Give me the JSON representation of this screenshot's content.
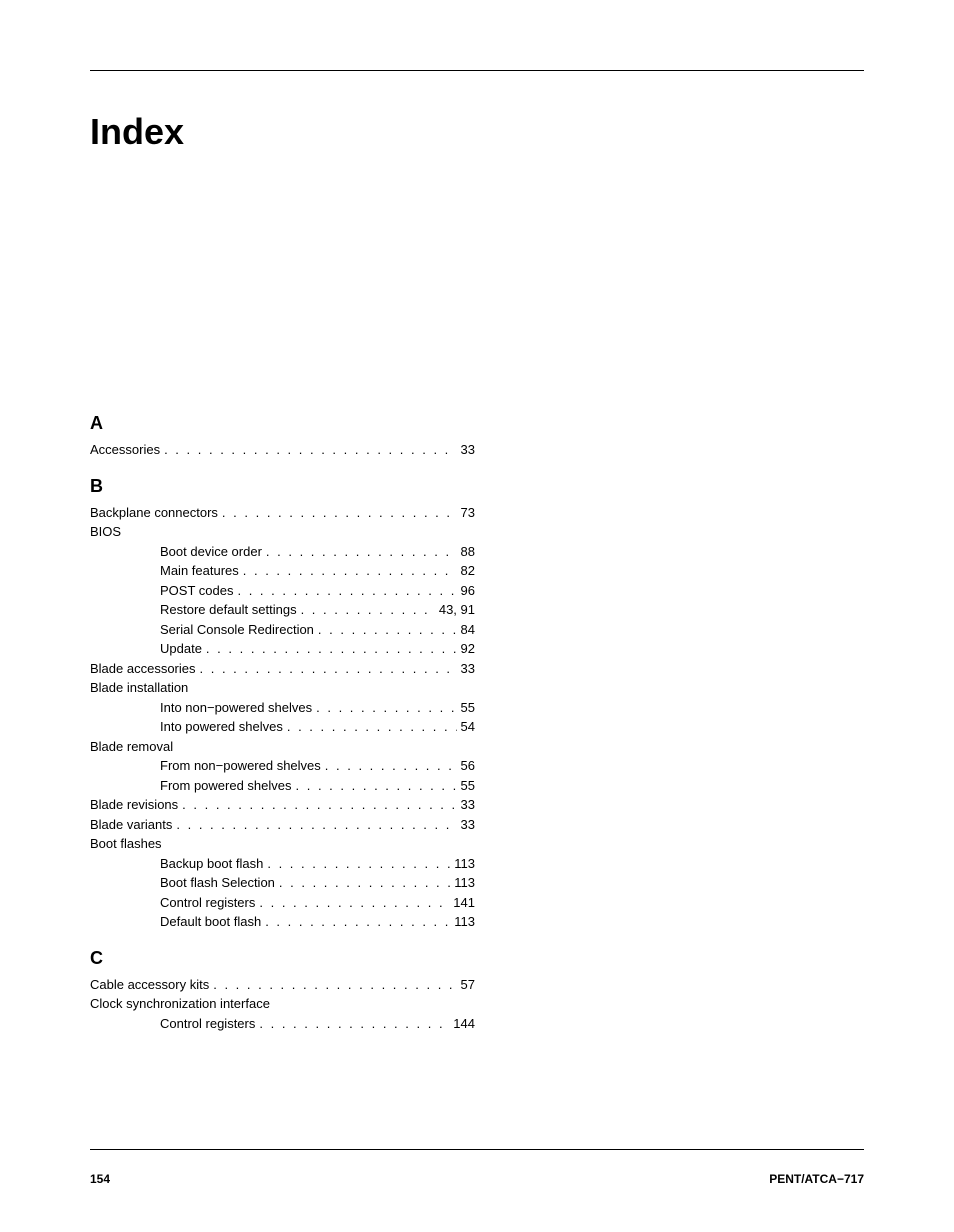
{
  "title": "Index",
  "sections": [
    {
      "letter": "A",
      "entries": [
        {
          "label": "Accessories",
          "page": "33",
          "sub": false,
          "hasPage": true
        }
      ]
    },
    {
      "letter": "B",
      "entries": [
        {
          "label": "Backplane connectors",
          "page": "73",
          "sub": false,
          "hasPage": true
        },
        {
          "label": "BIOS",
          "page": "",
          "sub": false,
          "hasPage": false
        },
        {
          "label": "Boot device order",
          "page": "88",
          "sub": true,
          "hasPage": true
        },
        {
          "label": "Main features",
          "page": "82",
          "sub": true,
          "hasPage": true
        },
        {
          "label": "POST codes",
          "page": "96",
          "sub": true,
          "hasPage": true
        },
        {
          "label": "Restore default settings",
          "page": "43,   91",
          "sub": true,
          "hasPage": true
        },
        {
          "label": "Serial Console Redirection",
          "page": "84",
          "sub": true,
          "hasPage": true
        },
        {
          "label": "Update",
          "page": "92",
          "sub": true,
          "hasPage": true
        },
        {
          "label": "Blade accessories",
          "page": "33",
          "sub": false,
          "hasPage": true
        },
        {
          "label": "Blade installation",
          "page": "",
          "sub": false,
          "hasPage": false
        },
        {
          "label": "Into non−powered shelves",
          "page": "55",
          "sub": true,
          "hasPage": true
        },
        {
          "label": "Into powered shelves",
          "page": "54",
          "sub": true,
          "hasPage": true
        },
        {
          "label": "Blade removal",
          "page": "",
          "sub": false,
          "hasPage": false
        },
        {
          "label": "From non−powered shelves",
          "page": "56",
          "sub": true,
          "hasPage": true
        },
        {
          "label": "From powered shelves",
          "page": "55",
          "sub": true,
          "hasPage": true
        },
        {
          "label": "Blade revisions",
          "page": "33",
          "sub": false,
          "hasPage": true
        },
        {
          "label": "Blade variants",
          "page": "33",
          "sub": false,
          "hasPage": true
        },
        {
          "label": "Boot flashes",
          "page": "",
          "sub": false,
          "hasPage": false
        },
        {
          "label": "Backup boot flash",
          "page": "113",
          "sub": true,
          "hasPage": true
        },
        {
          "label": "Boot flash Selection",
          "page": "113",
          "sub": true,
          "hasPage": true
        },
        {
          "label": "Control registers",
          "page": "141",
          "sub": true,
          "hasPage": true
        },
        {
          "label": "Default boot flash",
          "page": "113",
          "sub": true,
          "hasPage": true
        }
      ]
    },
    {
      "letter": "C",
      "entries": [
        {
          "label": "Cable accessory kits",
          "page": "57",
          "sub": false,
          "hasPage": true
        },
        {
          "label": "Clock synchronization interface",
          "page": "",
          "sub": false,
          "hasPage": false
        },
        {
          "label": "Control registers",
          "page": "144",
          "sub": true,
          "hasPage": true
        }
      ]
    }
  ],
  "footer": {
    "pageNumber": "154",
    "docId": "PENT/ATCA−717"
  }
}
